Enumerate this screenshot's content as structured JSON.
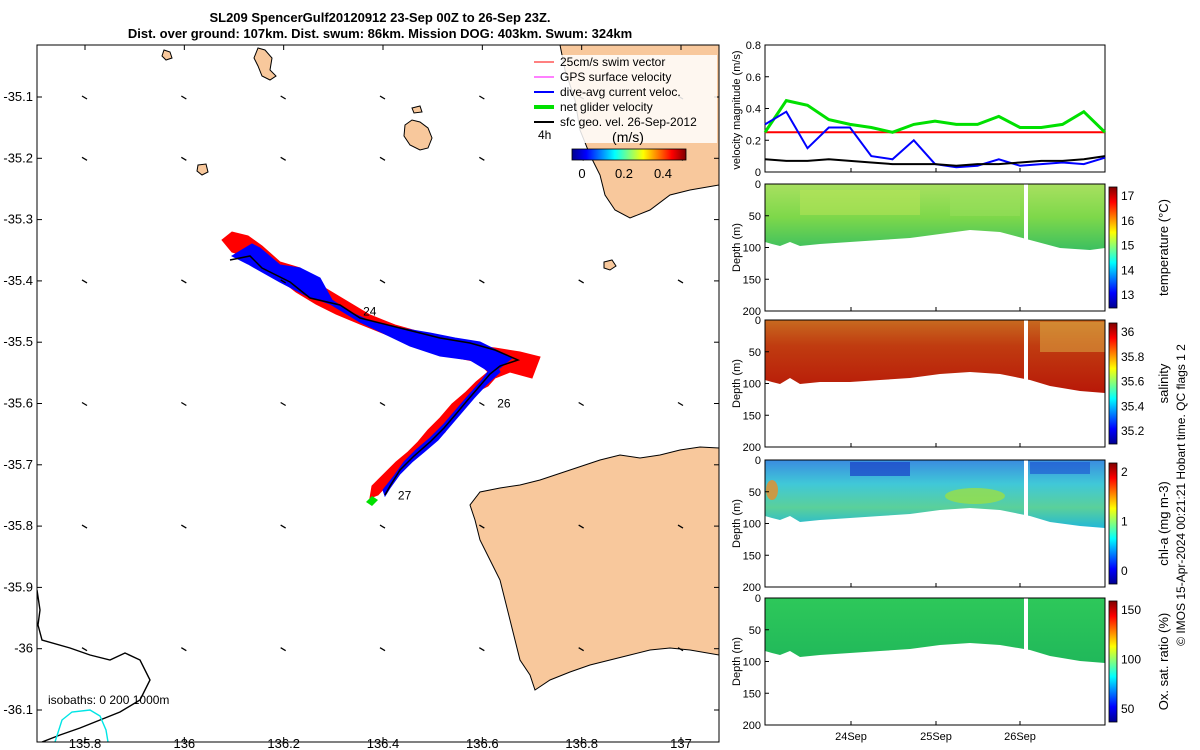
{
  "title_line1": "SL209 SpencerGulf20120912 23-Sep 00Z to 26-Sep 23Z.",
  "title_line2": "Dist. over ground: 107km. Dist. swum: 86km. Mission DOG: 403km. Swum: 324km",
  "map": {
    "legend": [
      {
        "label": "25cm/s swim vector",
        "color": "#ff0000",
        "width": 1
      },
      {
        "label": "GPS surface velocity",
        "color": "#ff00ff",
        "width": 1
      },
      {
        "label": "dive-avg current veloc.",
        "color": "#0000ff",
        "width": 2
      },
      {
        "label": "net glider velocity",
        "color": "#00e000",
        "width": 4
      },
      {
        "label": "sfc geo. vel. 26-Sep-2012",
        "color": "#000000",
        "width": 2
      }
    ],
    "interval_label": "4h",
    "colorbar_title": "(m/s)",
    "colorbar_ticks": [
      "0",
      "0.2",
      "0.4"
    ],
    "x_ticks": [
      "135.8",
      "136",
      "136.2",
      "136.4",
      "136.6",
      "136.8",
      "137"
    ],
    "y_ticks": [
      "-35.1",
      "-35.2",
      "-35.3",
      "-35.4",
      "-35.5",
      "-35.6",
      "-35.7",
      "-35.8",
      "-35.9",
      "-36",
      "-36.1"
    ],
    "day_labels": [
      {
        "text": "24",
        "lon": 136.36,
        "lat": -35.45
      },
      {
        "text": "26",
        "lon": 136.63,
        "lat": -35.6
      },
      {
        "text": "27",
        "lon": 136.43,
        "lat": -35.75
      }
    ],
    "isobaths_label": "isobaths:  0   200  1000m",
    "colors": {
      "land": "#f8c89c",
      "isobath0": "#000000",
      "isobath200": "#00e5e5"
    }
  },
  "velocity_panel": {
    "ylabel": "velocity magnitude (m/s)",
    "y_ticks": [
      "0",
      "0.2",
      "0.4",
      "0.6",
      "0.8"
    ],
    "ylim": [
      0,
      0.8
    ]
  },
  "profile_panels": [
    {
      "id": "temperature",
      "label": "temperature (°C)",
      "cb_ticks": [
        "17",
        "16",
        "15",
        "14",
        "13"
      ]
    },
    {
      "id": "salinity",
      "label": "salinity",
      "cb_ticks": [
        "36",
        "35.8",
        "35.6",
        "35.4",
        "35.2"
      ]
    },
    {
      "id": "chla",
      "label": "chl-a (mg m-3)",
      "cb_ticks": [
        "2",
        "1",
        "0"
      ]
    },
    {
      "id": "oxsat",
      "label": "Ox. sat. ratio (%)",
      "cb_ticks": [
        "150",
        "100",
        "50"
      ]
    }
  ],
  "depth_label": "Depth (m)",
  "depth_ticks": [
    "0",
    "50",
    "100",
    "150",
    "200"
  ],
  "time_ticks": [
    "24Sep",
    "25Sep",
    "26Sep"
  ],
  "footer_text": "© IMOS 15-Apr-2024 00:21:21 Hobart time. QC flags 1  2",
  "chart_data": [
    {
      "type": "line",
      "title": "SL209 SpencerGulf20120912 23-Sep 00Z to 26-Sep 23Z.",
      "xlabel": "",
      "ylabel": "velocity magnitude (m/s)",
      "ylim": [
        0,
        0.8
      ],
      "x": [
        "23Sep00",
        "23Sep06",
        "23Sep12",
        "23Sep18",
        "24Sep00",
        "24Sep06",
        "24Sep12",
        "24Sep18",
        "25Sep00",
        "25Sep06",
        "25Sep12",
        "25Sep18",
        "26Sep00",
        "26Sep06",
        "26Sep12",
        "26Sep18",
        "26Sep23"
      ],
      "series": [
        {
          "values": [
            0.25,
            0.25,
            0.25,
            0.25,
            0.25,
            0.25,
            0.25,
            0.25,
            0.25,
            0.25,
            0.25,
            0.25,
            0.25,
            0.25,
            0.25,
            0.25,
            0.25
          ],
          "color": "#ff0000"
        },
        {
          "values": [
            0.25,
            0.45,
            0.42,
            0.33,
            0.3,
            0.28,
            0.25,
            0.3,
            0.32,
            0.3,
            0.3,
            0.35,
            0.28,
            0.28,
            0.3,
            0.38,
            0.25
          ],
          "color": "#00e000"
        },
        {
          "values": [
            0.3,
            0.38,
            0.15,
            0.28,
            0.28,
            0.1,
            0.08,
            0.2,
            0.05,
            0.03,
            0.04,
            0.08,
            0.04,
            0.05,
            0.06,
            0.05,
            0.09
          ],
          "color": "#0000ff"
        },
        {
          "values": [
            0.08,
            0.07,
            0.07,
            0.08,
            0.07,
            0.06,
            0.05,
            0.05,
            0.05,
            0.04,
            0.05,
            0.05,
            0.06,
            0.07,
            0.07,
            0.08,
            0.1
          ],
          "color": "#000000"
        }
      ]
    }
  ]
}
